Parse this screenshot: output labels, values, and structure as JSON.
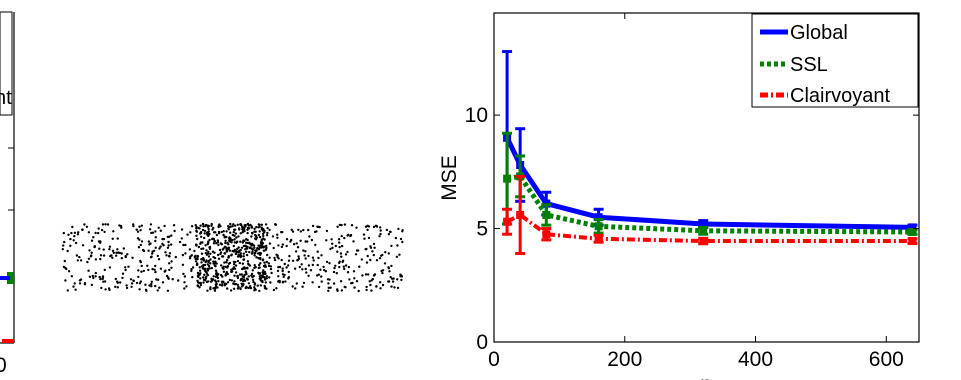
{
  "left_panel": {
    "legend_partial_text": "nt",
    "x_tick_partial": "0",
    "colors": {
      "global": "#0000ff",
      "ssl": "#008000",
      "clairvoyant": "#ff0000"
    }
  },
  "scatter_panel": {
    "point_color": "#000000",
    "regions": [
      {
        "name": "sparse-left",
        "x_range": [
          0.0,
          0.39
        ],
        "count": 260
      },
      {
        "name": "dense-center",
        "x_range": [
          0.39,
          0.6
        ],
        "count": 600
      },
      {
        "name": "sparse-right",
        "x_range": [
          0.6,
          1.0
        ],
        "count": 280
      }
    ]
  },
  "chart_data": {
    "type": "line",
    "ylabel": "MSE",
    "xlabel": "n",
    "xlim": [
      0,
      650
    ],
    "ylim": [
      0,
      14.5
    ],
    "xticks": [
      0,
      200,
      400,
      600
    ],
    "yticks": [
      0,
      5,
      10
    ],
    "x": [
      20,
      40,
      80,
      160,
      320,
      640
    ],
    "legend": {
      "placement": "top-right",
      "entries": [
        "Global",
        "SSL",
        "Clairvoyant"
      ]
    },
    "series": [
      {
        "name": "Global",
        "color": "#0000ff",
        "style": "solid",
        "values": [
          9.0,
          7.8,
          6.1,
          5.5,
          5.2,
          5.05
        ],
        "err": [
          3.8,
          1.6,
          0.5,
          0.35,
          0.15,
          0.1
        ]
      },
      {
        "name": "SSL",
        "color": "#008000",
        "style": "dotted",
        "values": [
          7.2,
          7.3,
          5.6,
          5.1,
          4.9,
          4.85
        ],
        "err": [
          2.0,
          0.9,
          0.45,
          0.3,
          0.15,
          0.1
        ]
      },
      {
        "name": "Clairvoyant",
        "color": "#ff0000",
        "style": "dashdot",
        "values": [
          5.3,
          5.6,
          4.75,
          4.55,
          4.45,
          4.45
        ],
        "err": [
          0.55,
          1.7,
          0.25,
          0.15,
          0.12,
          0.1
        ]
      }
    ]
  }
}
